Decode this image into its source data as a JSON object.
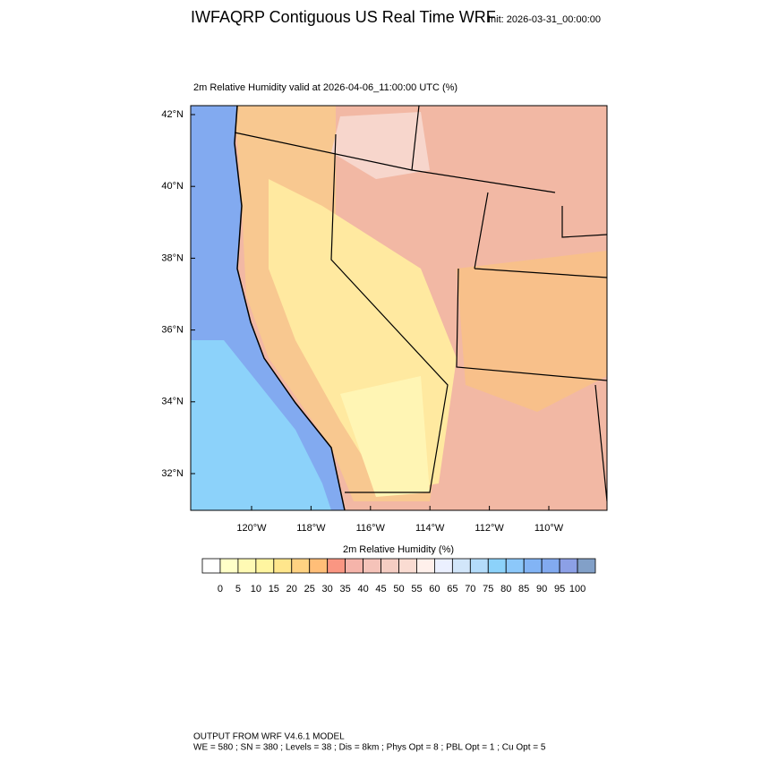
{
  "header": {
    "title": "IWFAQRP Contiguous US Real Time WRF",
    "init": "Init: 2026-03-31_00:00:00"
  },
  "map": {
    "subtitle": "2m Relative Humidity valid at 2026-04-06_11:00:00 UTC   (%)",
    "lat_labels": [
      "42°N",
      "40°N",
      "38°N",
      "36°N",
      "34°N",
      "32°N"
    ],
    "lon_labels": [
      "120°W",
      "118°W",
      "116°W",
      "114°W",
      "112°W",
      "110°W"
    ]
  },
  "colorbar": {
    "title": "2m Relative Humidity  (%)",
    "labels": [
      0,
      5,
      10,
      15,
      20,
      25,
      30,
      35,
      40,
      45,
      50,
      55,
      60,
      65,
      70,
      75,
      80,
      85,
      90,
      95,
      100
    ],
    "colors": [
      "#ffffff",
      "#ffffc8",
      "#fffab4",
      "#fff5a0",
      "#ffe68c",
      "#ffd282",
      "#ffbe78",
      "#fa9682",
      "#f5b4aa",
      "#f5c3b9",
      "#f5cdc3",
      "#fadcd2",
      "#fff0eb",
      "#ebf0ff",
      "#d2e6fa",
      "#b4dcfa",
      "#8cd2fa",
      "#8cc8fa",
      "#82b4f5",
      "#82aaf0",
      "#8ca0e6",
      "#82a0c8"
    ]
  },
  "footer": {
    "line1": "OUTPUT FROM WRF V4.6.1 MODEL",
    "line2": "WE = 580 ; SN = 380 ; Levels = 38 ; Dis = 8km ; Phys Opt = 8 ; PBL Opt = 1 ; Cu Opt = 5"
  }
}
